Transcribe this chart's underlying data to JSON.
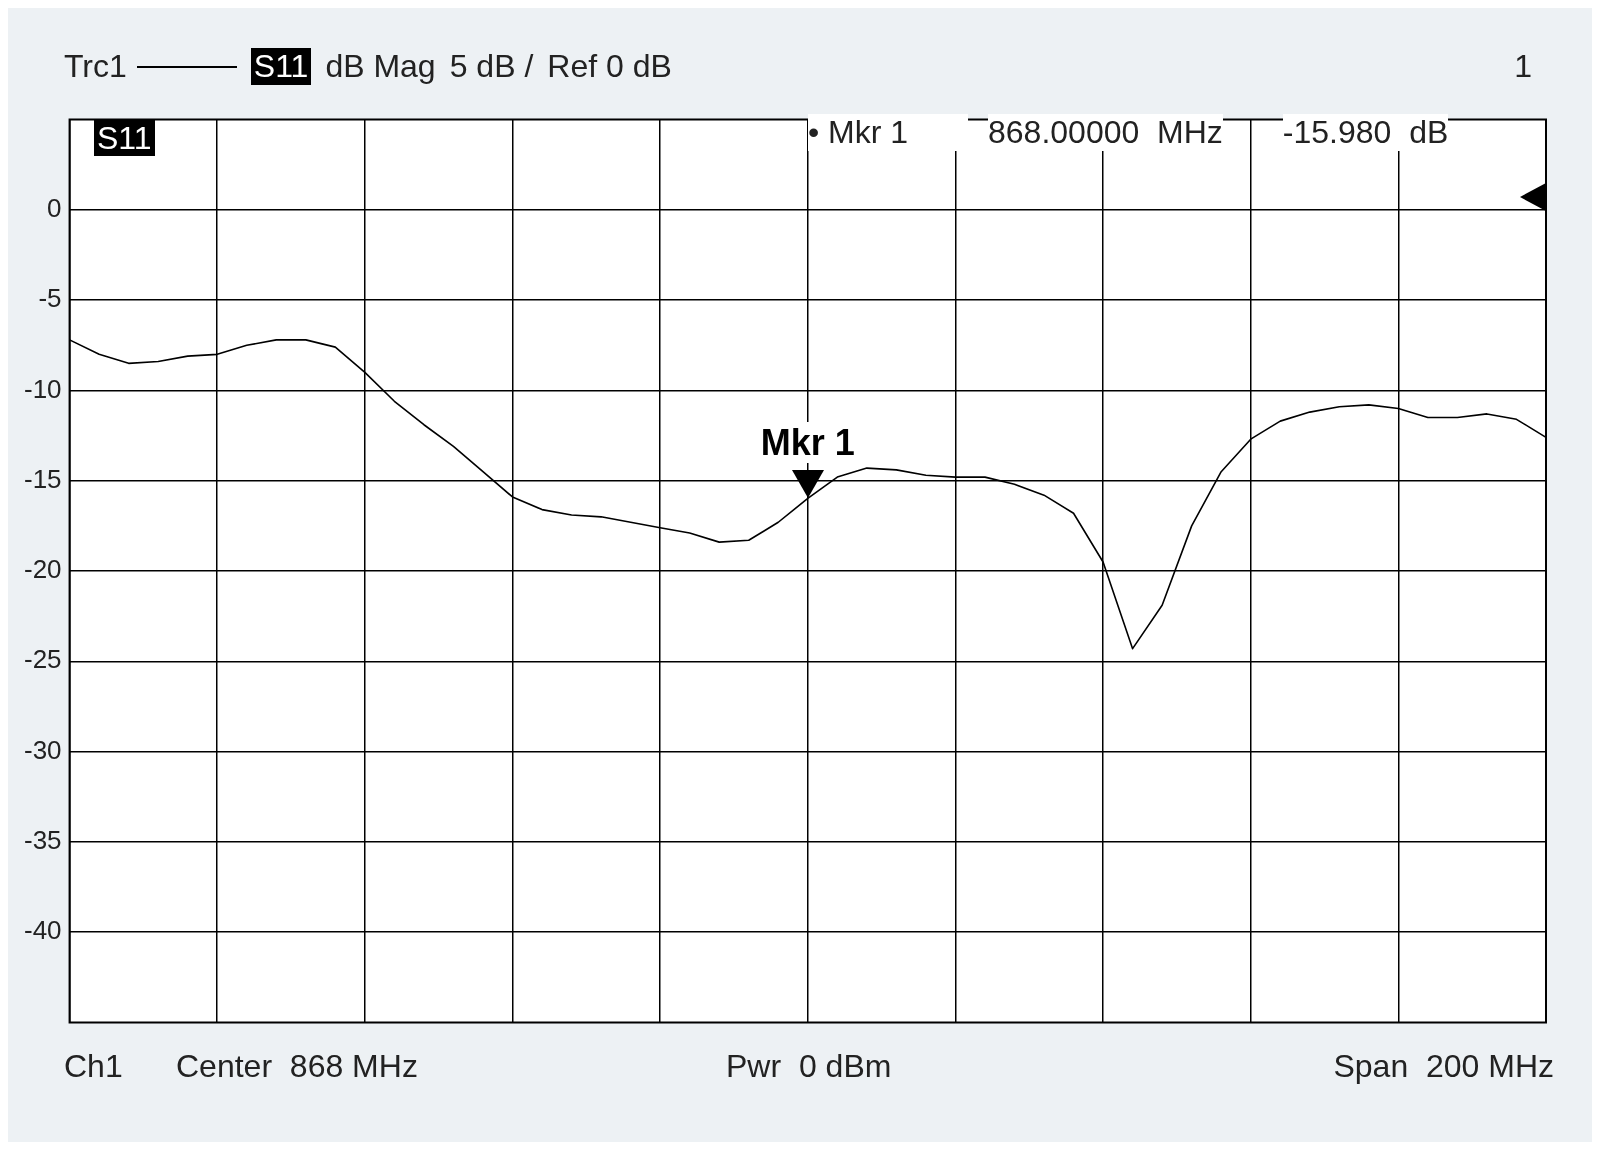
{
  "chart_data": {
    "type": "line",
    "legend": "top left",
    "grid": true,
    "marker": "none",
    "line_style": "solid",
    "tick_labels": "y",
    "categories": [
      null,
      null,
      null,
      null,
      null,
      null,
      null,
      null,
      null,
      null,
      null,
      null,
      null,
      null,
      null,
      null,
      null,
      null,
      null,
      null,
      null,
      null,
      null,
      null,
      null,
      null,
      null,
      null,
      null,
      null,
      null,
      null,
      null,
      null,
      null,
      null,
      null,
      null,
      null,
      null,
      null,
      null,
      null,
      null,
      null,
      null,
      null,
      null,
      null,
      null,
      null
    ],
    "ylim": [
      -45,
      5
    ],
    "yticks": [
      0,
      -5,
      -10,
      -15,
      -20,
      -25,
      -30,
      -35,
      -40
    ],
    "annotations": [
      "S11",
      "dB Mag",
      "5 dB /",
      "Ref 0 dB",
      "1",
      "S11",
      "• Mkr 1",
      "868.00000  MHz",
      "-15.980  dB",
      "Ch1",
      "Center  868 MHz",
      "Pwr  0 dBm",
      "Span  200 MHz",
      {
        "text": "Mkr 1",
        "y": -15.98
      }
    ],
    "series": [
      {
        "name": "Trc1",
        "color": "#000000",
        "values": [
          -7.2,
          -8.0,
          -8.5,
          -8.4,
          -8.1,
          -8.0,
          -7.5,
          -7.2,
          -7.2,
          -7.6,
          -9.0,
          -10.6,
          -11.9,
          -13.1,
          -14.5,
          -15.9,
          -16.6,
          -16.9,
          -17.0,
          -17.3,
          -17.6,
          -17.9,
          -18.4,
          -18.3,
          -17.3,
          -15.98,
          -14.8,
          -14.3,
          -14.4,
          -14.7,
          -14.8,
          -14.8,
          -15.2,
          -15.8,
          -16.8,
          -19.5,
          -24.3,
          -21.9,
          -17.5,
          -14.5,
          -12.7,
          -11.7,
          -11.2,
          -10.9,
          -10.8,
          -11.0,
          -11.5,
          -11.5,
          -11.3,
          -11.6,
          -12.6
        ]
      }
    ]
  }
}
